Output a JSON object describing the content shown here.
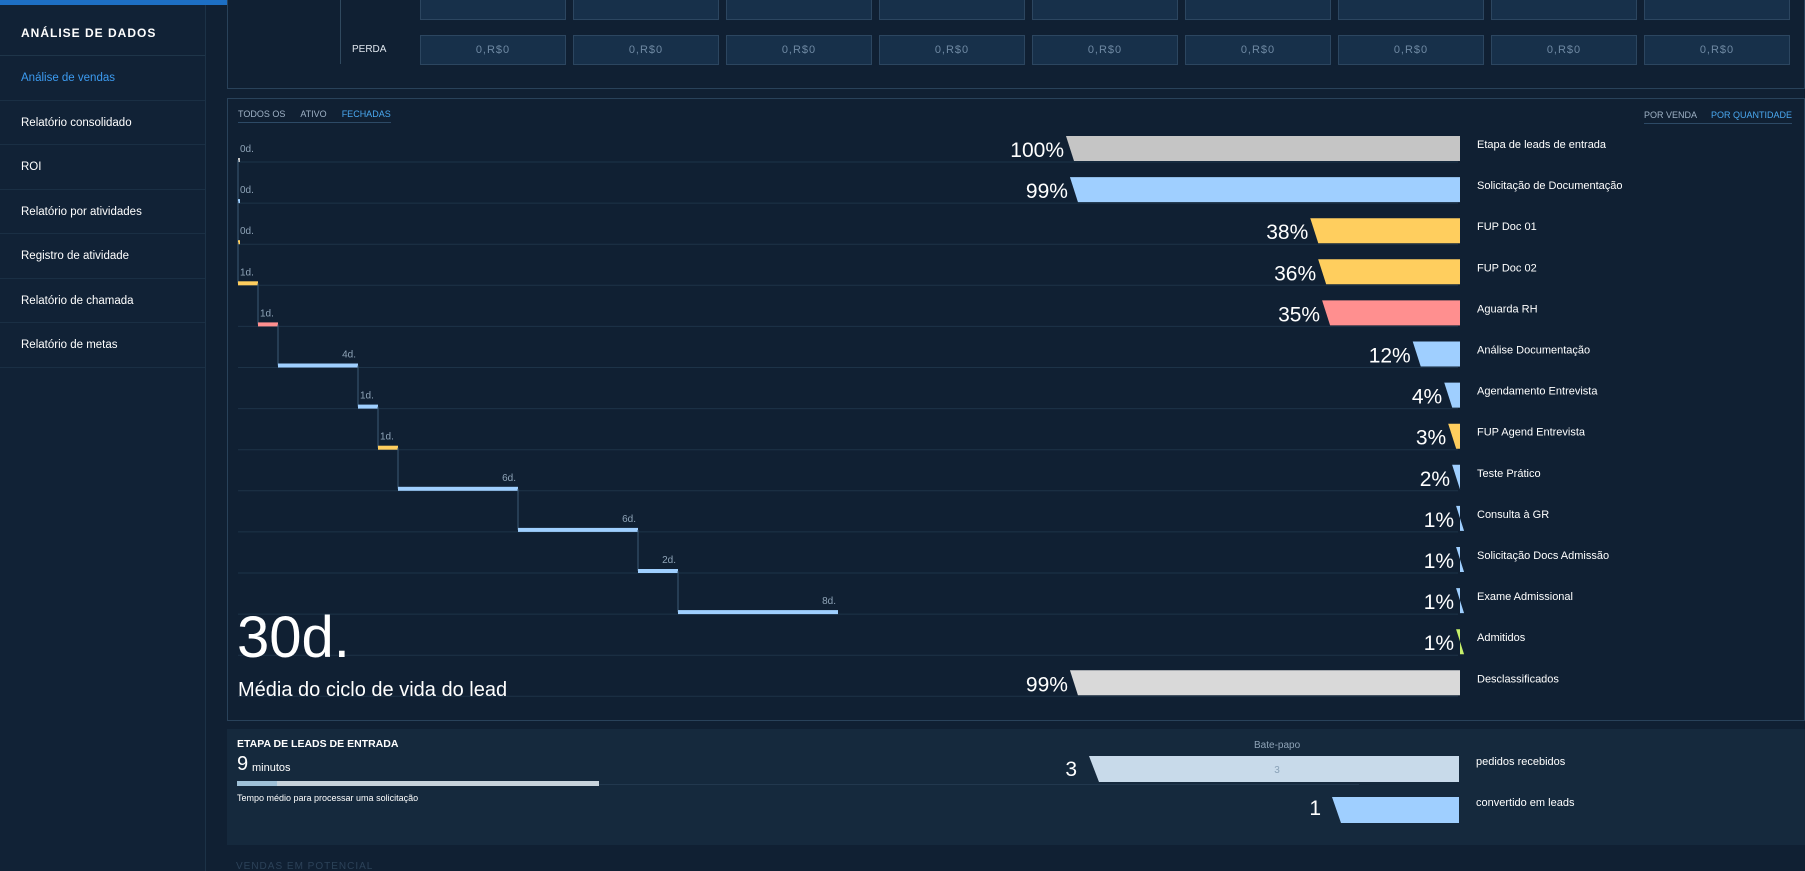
{
  "sidebar": {
    "title": "ANÁLISE DE DADOS",
    "items": [
      {
        "label": "Análise de vendas",
        "active": true
      },
      {
        "label": "Relatório consolidado"
      },
      {
        "label": "ROI"
      },
      {
        "label": "Relatório por atividades"
      },
      {
        "label": "Registro de atividade"
      },
      {
        "label": "Relatório de chamada"
      },
      {
        "label": "Relatório de metas"
      }
    ]
  },
  "top_panel": {
    "row_label": "PERDA",
    "values": [
      "0,R$0",
      "0,R$0",
      "0,R$0",
      "0,R$0",
      "0,R$0",
      "0,R$0",
      "0,R$0",
      "0,R$0",
      "0,R$0"
    ]
  },
  "main": {
    "tabs": [
      "TODOS OS",
      "ATIVO",
      "FECHADAS"
    ],
    "active_tab": "FECHADAS",
    "view_tabs": [
      "POR VENDA",
      "POR QUANTIDADE"
    ],
    "active_view": "POR QUANTIDADE",
    "average": "30d.",
    "average_label": "Média do ciclo de vida do lead"
  },
  "chart_data": {
    "type": "bar",
    "stages": [
      {
        "name": "Etapa de leads de entrada",
        "pct": 100,
        "label": "100%",
        "days": "0d.",
        "dur": 0,
        "color": "#c5c5c5"
      },
      {
        "name": "Solicitação de Documentação",
        "pct": 99,
        "label": "99%",
        "days": "0d.",
        "dur": 0,
        "color": "#9fcfff"
      },
      {
        "name": "FUP Doc 01",
        "pct": 38,
        "label": "38%",
        "days": "0d.",
        "dur": 0,
        "color": "#ffce5e"
      },
      {
        "name": "FUP Doc 02",
        "pct": 36,
        "label": "36%",
        "days": "1d.",
        "dur": 1,
        "color": "#ffce5e"
      },
      {
        "name": "Aguarda RH",
        "pct": 35,
        "label": "35%",
        "days": "1d.",
        "dur": 1,
        "color": "#ff8f8f"
      },
      {
        "name": "Análise Documentação",
        "pct": 12,
        "label": "12%",
        "days": "4d.",
        "dur": 4,
        "color": "#9fcfff"
      },
      {
        "name": "Agendamento Entrevista",
        "pct": 4,
        "label": "4%",
        "days": "1d.",
        "dur": 1,
        "color": "#9fcfff"
      },
      {
        "name": "FUP Agend Entrevista",
        "pct": 3,
        "label": "3%",
        "days": "1d.",
        "dur": 1,
        "color": "#ffce5e"
      },
      {
        "name": "Teste Prático",
        "pct": 2,
        "label": "2%",
        "days": "6d.",
        "dur": 6,
        "color": "#9fcfff"
      },
      {
        "name": "Consulta à GR",
        "pct": 1,
        "label": "1%",
        "days": "6d.",
        "dur": 6,
        "color": "#9fcfff"
      },
      {
        "name": "Solicitação Docs Admissão",
        "pct": 1,
        "label": "1%",
        "days": "2d.",
        "dur": 2,
        "color": "#9fcfff"
      },
      {
        "name": "Exame Admissional",
        "pct": 1,
        "label": "1%",
        "days": "8d.",
        "dur": 8,
        "color": "#9fcfff"
      },
      {
        "name": "Admitidos",
        "pct": 1,
        "label": "1%",
        "days": null,
        "dur": null,
        "color": "#c6ef6a"
      },
      {
        "name": "Desclassificados",
        "pct": 99,
        "label": "99%",
        "days": null,
        "dur": null,
        "color": "#d9d9d9"
      }
    ]
  },
  "stage_panel": {
    "title": "ETAPA DE LEADS DE ENTRADA",
    "time_value": "9",
    "time_unit": "minutos",
    "description": "Tempo médio para processar uma solicitação",
    "channel": "Bate-papo",
    "received": {
      "value": "3",
      "inner": "3",
      "label": "pedidos recebidos",
      "color": "#c8daea"
    },
    "converted": {
      "value": "1",
      "label": "convertido em leads",
      "color": "#9fcfff"
    }
  },
  "bottom_hint": "VENDAS EM POTENCIAL"
}
